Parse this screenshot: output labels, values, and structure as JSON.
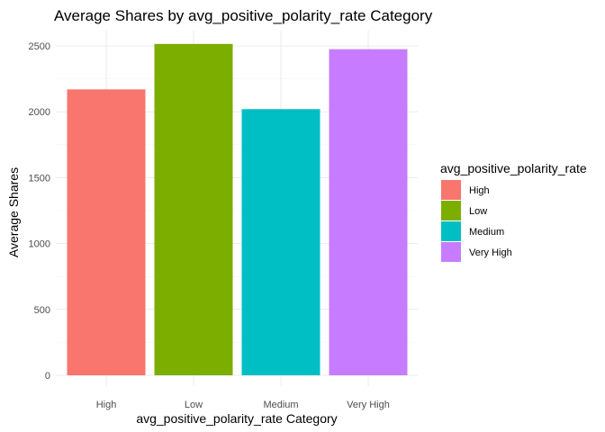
{
  "chart_data": {
    "type": "bar",
    "title": "Average Shares by avg_positive_polarity_rate Category",
    "xlabel": "avg_positive_polarity_rate Category",
    "ylabel": "Average Shares",
    "categories": [
      "High",
      "Low",
      "Medium",
      "Very High"
    ],
    "values": [
      2170,
      2515,
      2020,
      2475
    ],
    "colors": [
      "#F8766D",
      "#7CAE00",
      "#00BFC4",
      "#C77CFF"
    ],
    "ylim": [
      0,
      2600
    ],
    "yticks": [
      0,
      500,
      1000,
      1500,
      2000,
      2500
    ],
    "grid": true,
    "legend": {
      "title": "avg_positive_polarity_rate",
      "position": "right",
      "entries": [
        "High",
        "Low",
        "Medium",
        "Very High"
      ]
    }
  }
}
